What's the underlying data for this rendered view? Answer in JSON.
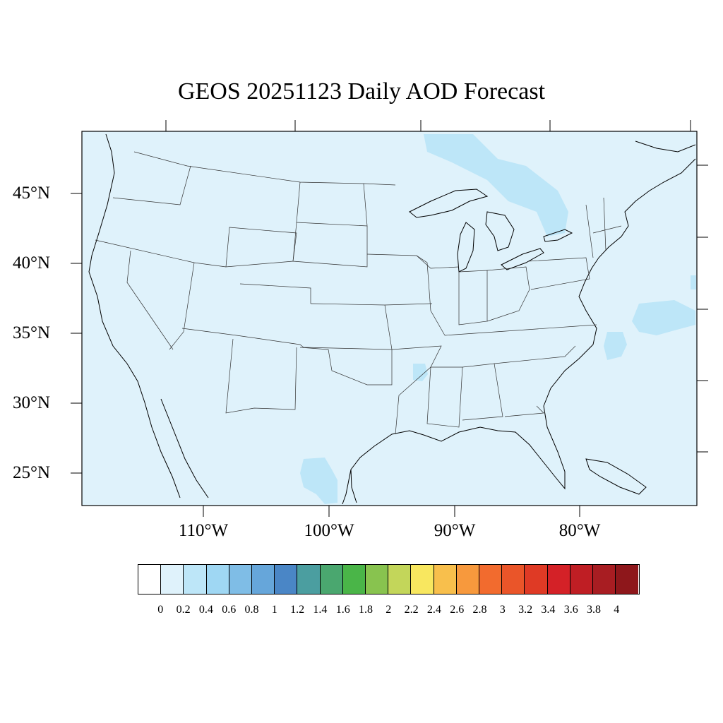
{
  "title": "GEOS 20251123 Daily AOD Forecast",
  "lat_labels": [
    "45°N",
    "40°N",
    "35°N",
    "30°N",
    "25°N"
  ],
  "lon_labels": [
    "110°W",
    "100°W",
    "90°W",
    "80°W"
  ],
  "colorbar": {
    "labels": [
      "0",
      "0.2",
      "0.4",
      "0.6",
      "0.8",
      "1",
      "1.2",
      "1.4",
      "1.6",
      "1.8",
      "2",
      "2.2",
      "2.4",
      "2.6",
      "2.8",
      "3",
      "3.2",
      "3.4",
      "3.6",
      "3.8",
      "4"
    ],
    "colors": [
      "#ffffff",
      "#dff2fb",
      "#bde6f8",
      "#9fd7f3",
      "#7fbde6",
      "#66a6da",
      "#4a86c6",
      "#4b9ea0",
      "#4aa76f",
      "#4ab548",
      "#88c34f",
      "#c3d65a",
      "#f8e75f",
      "#f8bf4c",
      "#f7993d",
      "#f26b2e",
      "#ea5529",
      "#df3a25",
      "#d42127",
      "#bf1e24",
      "#a81d22",
      "#8e171b"
    ]
  },
  "map_data": {
    "background_aod_range": [
      0,
      0.2
    ],
    "features": [
      "state-boundaries",
      "coastlines",
      "great-lakes"
    ],
    "elevated_regions": [
      {
        "name": "southern-ontario-quebec",
        "aod_range": [
          0.2,
          0.4
        ]
      },
      {
        "name": "western-atlantic-offshore",
        "aod_range": [
          0.2,
          0.4
        ]
      },
      {
        "name": "northeast-mexico",
        "aod_range": [
          0.2,
          0.4
        ]
      },
      {
        "name": "northern-louisiana",
        "aod_range": [
          0.2,
          0.4
        ]
      }
    ]
  }
}
